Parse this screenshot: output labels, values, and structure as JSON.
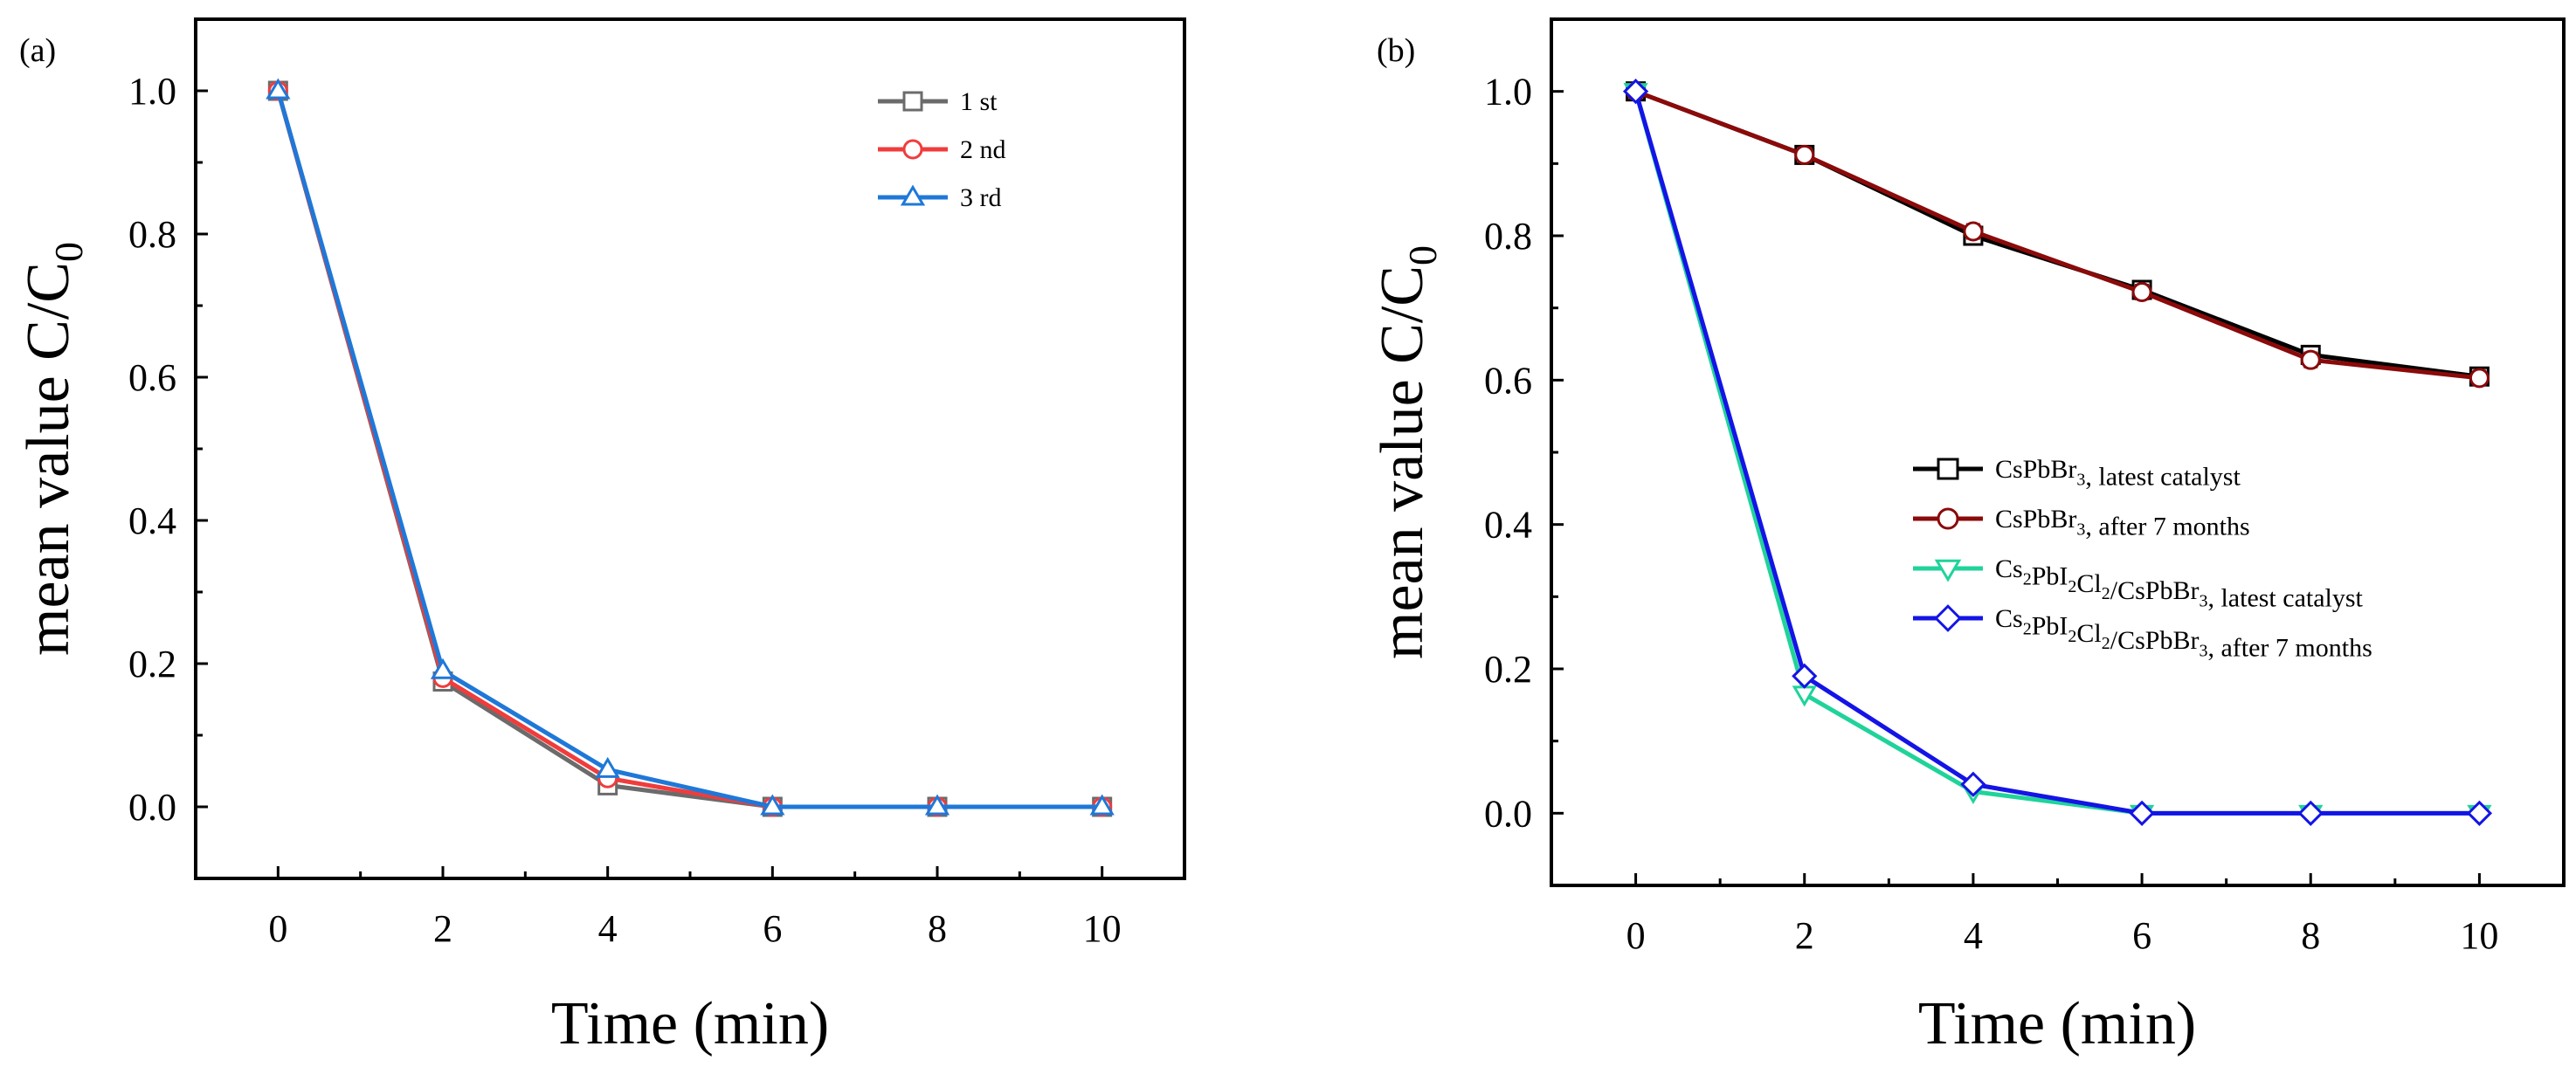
{
  "chart_data": [
    {
      "type": "line",
      "panel_label": "(a)",
      "xlabel": "Time (min)",
      "ylabel_main": "mean value C/C",
      "ylabel_sub": "0",
      "xlim": [
        -1,
        11
      ],
      "ylim": [
        -0.1,
        1.1
      ],
      "x_ticks": [
        0,
        2,
        4,
        6,
        8,
        10
      ],
      "y_ticks": [
        0.0,
        0.2,
        0.4,
        0.6,
        0.8,
        1.0
      ],
      "x_tick_labels": [
        "0",
        "2",
        "4",
        "6",
        "8",
        "10"
      ],
      "y_tick_labels": [
        "0.0",
        "0.2",
        "0.4",
        "0.6",
        "0.8",
        "1.0"
      ],
      "legend_position": "top-right",
      "x": [
        0,
        2,
        4,
        6,
        8,
        10
      ],
      "series": [
        {
          "name": "1 st",
          "color": "#6b6b6b",
          "marker": "square",
          "values": [
            1.0,
            0.175,
            0.03,
            0.0,
            0.0,
            0.0
          ]
        },
        {
          "name": "2 nd",
          "color": "#f03c3c",
          "marker": "circle",
          "values": [
            1.0,
            0.18,
            0.04,
            0.0,
            0.0,
            0.0
          ]
        },
        {
          "name": "3 rd",
          "color": "#1f78d8",
          "marker": "triangle-up",
          "values": [
            1.0,
            0.19,
            0.052,
            0.0,
            0.0,
            0.0
          ]
        }
      ]
    },
    {
      "type": "line",
      "panel_label": "(b)",
      "xlabel": "Time (min)",
      "ylabel_main": "mean value C/C",
      "ylabel_sub": "0",
      "xlim": [
        -1,
        11
      ],
      "ylim": [
        -0.1,
        1.1
      ],
      "x_ticks": [
        0,
        2,
        4,
        6,
        8,
        10
      ],
      "y_ticks": [
        0.0,
        0.2,
        0.4,
        0.6,
        0.8,
        1.0
      ],
      "x_tick_labels": [
        "0",
        "2",
        "4",
        "6",
        "8",
        "10"
      ],
      "y_tick_labels": [
        "0.0",
        "0.2",
        "0.4",
        "0.6",
        "0.8",
        "1.0"
      ],
      "legend_position": "center-right",
      "x": [
        0,
        2,
        4,
        6,
        8,
        10
      ],
      "series": [
        {
          "name": "CsPbBr3, latest catalyst",
          "color": "#000000",
          "marker": "square",
          "error": 0.01,
          "label_parts": [
            [
              "CsPbBr",
              ""
            ],
            [
              "3",
              "sub"
            ],
            [
              ", latest catalyst",
              ""
            ]
          ],
          "values": [
            1.0,
            0.912,
            0.8,
            0.725,
            0.635,
            0.605
          ]
        },
        {
          "name": "CsPbBr3, after 7 months",
          "color": "#8b0a0a",
          "marker": "circle",
          "error": 0.01,
          "label_parts": [
            [
              "CsPbBr",
              ""
            ],
            [
              "3",
              "sub"
            ],
            [
              ", after 7 months",
              ""
            ]
          ],
          "values": [
            1.0,
            0.912,
            0.806,
            0.722,
            0.628,
            0.603
          ]
        },
        {
          "name": "Cs2PbI2Cl2/CsPbBr3, latest catalyst",
          "color": "#20d39a",
          "marker": "triangle-down",
          "error": 0,
          "label_parts": [
            [
              "Cs",
              ""
            ],
            [
              "2",
              "sub"
            ],
            [
              "PbI",
              ""
            ],
            [
              "2",
              "sub"
            ],
            [
              "Cl",
              ""
            ],
            [
              "2",
              "sub"
            ],
            [
              "/CsPbBr",
              ""
            ],
            [
              "3",
              "sub"
            ],
            [
              ", latest catalyst",
              ""
            ]
          ],
          "values": [
            1.0,
            0.165,
            0.03,
            0.0,
            0.0,
            0.0
          ]
        },
        {
          "name": "Cs2PbI2Cl2/CsPbBr3, after 7 months",
          "color": "#1414e6",
          "marker": "diamond",
          "error": 0,
          "label_parts": [
            [
              "Cs",
              ""
            ],
            [
              "2",
              "sub"
            ],
            [
              "PbI",
              ""
            ],
            [
              "2",
              "sub"
            ],
            [
              "Cl",
              ""
            ],
            [
              "2",
              "sub"
            ],
            [
              "/CsPbBr",
              ""
            ],
            [
              "3",
              "sub"
            ],
            [
              ", after 7 months",
              ""
            ]
          ],
          "values": [
            1.0,
            0.19,
            0.04,
            0.0,
            0.0,
            0.0
          ]
        }
      ]
    }
  ]
}
